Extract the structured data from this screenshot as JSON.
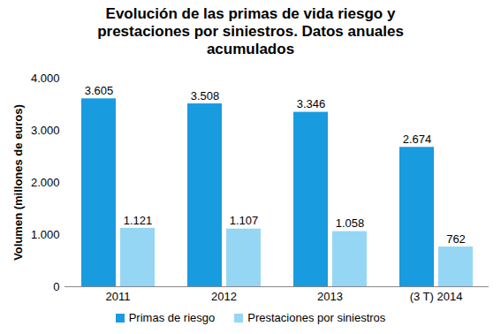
{
  "chart_data": {
    "type": "bar",
    "title": "Evolución de las primas de vida riesgo y prestaciones por siniestros. Datos anuales acumulados",
    "y_label": "Volumen (millones de euros)",
    "categories": [
      "2011",
      "2012",
      "2013",
      "(3 T) 2014"
    ],
    "series": [
      {
        "name": "Primas de riesgo",
        "color": "#199be0",
        "values": [
          3605,
          3508,
          3346,
          2674
        ],
        "value_labels": [
          "3.605",
          "3.508",
          "3.346",
          "2.674"
        ]
      },
      {
        "name": "Prestaciones por siniestros",
        "color": "#95d6f4",
        "values": [
          1121,
          1107,
          1058,
          762
        ],
        "value_labels": [
          "1.121",
          "1.107",
          "1.058",
          "762"
        ]
      }
    ],
    "ylim": [
      0,
      4000
    ],
    "yticks": [
      0,
      {
        "value": 1000,
        "label": "1.000"
      },
      {
        "value": 2000,
        "label": "2.000"
      },
      {
        "value": 3000,
        "label": "3.000"
      },
      {
        "value": 4000,
        "label": "4.000"
      }
    ],
    "grid": false,
    "legend": "bottom",
    "data_labels": true
  }
}
